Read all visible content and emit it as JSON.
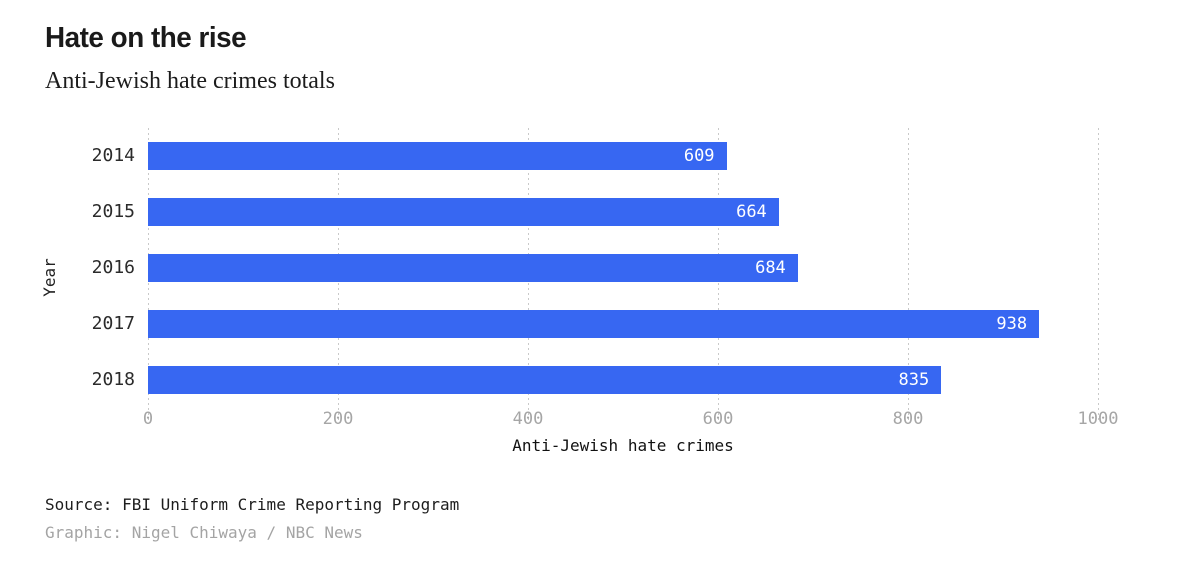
{
  "header": {
    "title": "Hate on the rise",
    "subtitle": "Anti-Jewish hate crimes totals"
  },
  "chart_data": {
    "type": "bar",
    "orientation": "horizontal",
    "categories": [
      "2014",
      "2015",
      "2016",
      "2017",
      "2018"
    ],
    "values": [
      609,
      664,
      684,
      938,
      835
    ],
    "title": "Hate on the rise",
    "subtitle": "Anti-Jewish hate crimes totals",
    "xlabel": "Anti-Jewish hate crimes",
    "ylabel": "Year",
    "xlim": [
      0,
      1000
    ],
    "xticks": [
      0,
      200,
      400,
      600,
      800,
      1000
    ],
    "grid": "vertical-dotted",
    "legend": "none",
    "bar_color": "#3767f2",
    "value_label_color": "#ffffff",
    "gridline_color": "#c9c9c9",
    "tick_label_color": "#a6a6a6"
  },
  "footer": {
    "source": "Source: FBI Uniform Crime Reporting Program",
    "credit": "Graphic: Nigel Chiwaya / NBC News"
  }
}
